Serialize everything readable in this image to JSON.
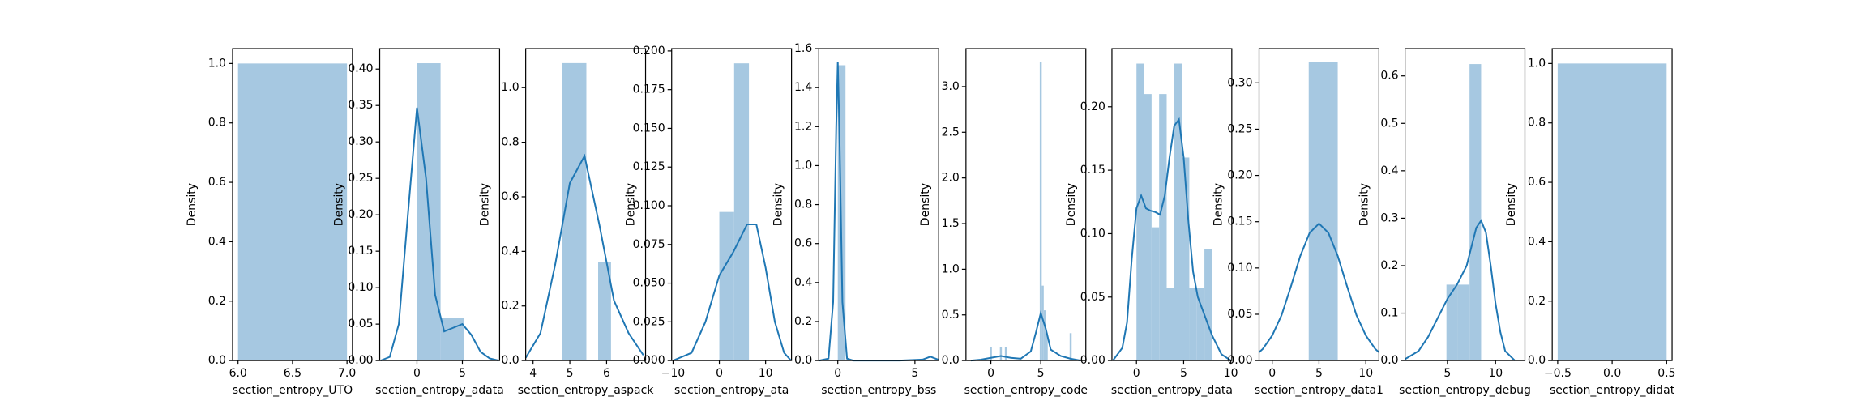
{
  "chart_data": [
    {
      "type": "histogram",
      "xlabel": "section_entropy_UTO",
      "ylabel": "Density",
      "bins": [
        6.0,
        7.0
      ],
      "values": [
        1.0
      ],
      "color": "#a6c8e1",
      "xlim": [
        5.95,
        7.05
      ],
      "xticks": [
        {
          "value": 6.0,
          "label": "6.0"
        },
        6.5,
        {
          "value": 7.0,
          "label": "7.0"
        }
      ],
      "ylim": [
        0,
        1.05
      ],
      "yticks": [
        {
          "value": 0,
          "label": "0.0"
        },
        0.2,
        0.4,
        0.6,
        0.8,
        {
          "value": 1.0,
          "label": "1.0"
        }
      ]
    },
    {
      "type": "histogram",
      "xlabel": "section_entropy_adata",
      "ylabel": "Density",
      "bins": [
        0,
        2.6,
        5.2
      ],
      "values": [
        0.408,
        0.058
      ],
      "color": "#a6c8e1",
      "kde": {
        "x": [
          -4,
          -3,
          -2,
          -1,
          0,
          1,
          2,
          3,
          4,
          5,
          6,
          7,
          8,
          9
        ],
        "y": [
          0,
          0.005,
          0.05,
          0.2,
          0.347,
          0.25,
          0.09,
          0.04,
          0.045,
          0.05,
          0.035,
          0.012,
          0.003,
          0
        ],
        "color": "#1f77b4"
      },
      "xlim": [
        -4.1,
        9.1
      ],
      "xticks": [
        0,
        5
      ],
      "ylim": [
        0,
        0.428
      ],
      "yticks": [
        {
          "value": 0,
          "label": "0.00"
        },
        0.05,
        {
          "value": 0.1,
          "label": "0.10"
        },
        0.15,
        {
          "value": 0.2,
          "label": "0.20"
        },
        0.25,
        {
          "value": 0.3,
          "label": "0.30"
        },
        0.35,
        {
          "value": 0.4,
          "label": "0.40"
        }
      ]
    },
    {
      "type": "histogram",
      "xlabel": "section_entropy_aspack",
      "ylabel": "Density",
      "bins": [
        4.8,
        5.45,
        5.77,
        6.12
      ],
      "values": [
        1.09,
        0,
        0.36
      ],
      "color": "#a6c8e1",
      "kde": {
        "x": [
          3.8,
          4.2,
          4.6,
          5.0,
          5.4,
          5.8,
          6.2,
          6.6,
          7.0
        ],
        "y": [
          0.01,
          0.1,
          0.35,
          0.65,
          0.75,
          0.5,
          0.22,
          0.1,
          0.02
        ],
        "color": "#1f77b4"
      },
      "xlim": [
        3.8,
        7.06
      ],
      "xticks": [
        4,
        5,
        6
      ],
      "ylim": [
        0,
        1.143
      ],
      "yticks": [
        {
          "value": 0,
          "label": "0.0"
        },
        0.2,
        0.4,
        0.6,
        0.8,
        {
          "value": 1.0,
          "label": "1.0"
        }
      ]
    },
    {
      "type": "histogram",
      "xlabel": "section_entropy_ata",
      "ylabel": "Density",
      "bins": [
        0,
        3.2,
        6.4
      ],
      "values": [
        0.096,
        0.192
      ],
      "color": "#a6c8e1",
      "kde": {
        "x": [
          -10,
          -6,
          -3,
          0,
          3,
          6,
          8,
          10,
          12,
          14,
          15.5
        ],
        "y": [
          0,
          0.005,
          0.025,
          0.055,
          0.07,
          0.088,
          0.088,
          0.06,
          0.025,
          0.005,
          0
        ],
        "color": "#1f77b4"
      },
      "xlim": [
        -10.3,
        15.6
      ],
      "xticks": [
        {
          "value": -10,
          "label": "−10"
        },
        0,
        10
      ],
      "ylim": [
        0,
        0.2015
      ],
      "yticks": [
        {
          "value": 0,
          "label": "0.000"
        },
        {
          "value": 0.025,
          "label": "0.025"
        },
        {
          "value": 0.05,
          "label": "0.050"
        },
        {
          "value": 0.075,
          "label": "0.075"
        },
        {
          "value": 0.1,
          "label": "0.100"
        },
        {
          "value": 0.125,
          "label": "0.125"
        },
        {
          "value": 0.15,
          "label": "0.150"
        },
        {
          "value": 0.175,
          "label": "0.175"
        },
        {
          "value": 0.2,
          "label": "0.200"
        }
      ]
    },
    {
      "type": "histogram",
      "xlabel": "section_entropy_bss",
      "ylabel": "Density",
      "bins": [
        0,
        0.5
      ],
      "values": [
        1.515
      ],
      "color": "#a6c8e1",
      "kde": {
        "x": [
          -1.2,
          -0.6,
          -0.3,
          -0.1,
          0,
          0.1,
          0.3,
          0.6,
          1,
          2,
          4,
          5.5,
          6,
          6.5
        ],
        "y": [
          0,
          0.01,
          0.3,
          1.2,
          1.53,
          1.2,
          0.3,
          0.01,
          0,
          0,
          0,
          0.005,
          0.02,
          0.005
        ],
        "color": "#1f77b4"
      },
      "xlim": [
        -1.23,
        6.54
      ],
      "xticks": [
        0,
        5
      ],
      "ylim": [
        0,
        1.6
      ],
      "yticks": [
        {
          "value": 0,
          "label": "0.0"
        },
        0.2,
        0.4,
        0.6,
        0.8,
        {
          "value": 1.0,
          "label": "1.0"
        },
        1.2,
        1.4,
        1.6
      ]
    },
    {
      "type": "histogram",
      "xlabel": "section_entropy_code",
      "ylabel": "Density",
      "bins": [
        -0.1,
        0.1,
        0.9,
        1.1,
        1.4,
        1.6,
        4.9,
        5.1,
        5.3,
        5.5,
        5.7,
        7.9,
        8.1
      ],
      "values": [
        0.15,
        0,
        0.15,
        0,
        0.15,
        0,
        3.27,
        0.82,
        0.55,
        0.3,
        0,
        0.3
      ],
      "color": "#a6c8e1",
      "kde": {
        "x": [
          -2,
          -1,
          0,
          1,
          2,
          3,
          4,
          4.5,
          5,
          5.5,
          6,
          7,
          8,
          9
        ],
        "y": [
          0,
          0.01,
          0.03,
          0.05,
          0.03,
          0.02,
          0.1,
          0.3,
          0.52,
          0.35,
          0.12,
          0.05,
          0.02,
          0
        ],
        "color": "#1f77b4"
      },
      "xlim": [
        -2.5,
        9.52
      ],
      "xticks": [
        0,
        5
      ],
      "ylim": [
        0,
        3.416
      ],
      "yticks": [
        {
          "value": 0,
          "label": "0.0"
        },
        0.5,
        {
          "value": 1.0,
          "label": "1.0"
        },
        1.5,
        {
          "value": 2.0,
          "label": "2.0"
        },
        2.5,
        {
          "value": 3.0,
          "label": "3.0"
        }
      ]
    },
    {
      "type": "histogram",
      "xlabel": "section_entropy_data",
      "ylabel": "Density",
      "bins": [
        0,
        0.8,
        1.6,
        2.4,
        3.2,
        4.0,
        4.8,
        5.6,
        6.4,
        7.2,
        8.0
      ],
      "values": [
        0.234,
        0.21,
        0.105,
        0.21,
        0.057,
        0.234,
        0.16,
        0.057,
        0.057,
        0.088
      ],
      "color": "#a6c8e1",
      "kde": {
        "x": [
          -2.5,
          -1.5,
          -1,
          -0.5,
          0,
          0.5,
          1,
          1.5,
          2,
          2.5,
          3,
          3.5,
          4,
          4.5,
          5,
          5.5,
          6,
          6.5,
          7,
          7.5,
          8,
          9,
          10
        ],
        "y": [
          0,
          0.01,
          0.03,
          0.08,
          0.12,
          0.13,
          0.12,
          0.118,
          0.117,
          0.115,
          0.13,
          0.16,
          0.185,
          0.19,
          0.16,
          0.11,
          0.07,
          0.05,
          0.04,
          0.03,
          0.02,
          0.005,
          0
        ],
        "color": "#1f77b4"
      },
      "xlim": [
        -2.6,
        10.1
      ],
      "xticks": [
        0,
        5,
        10
      ],
      "ylim": [
        0,
        0.2458
      ],
      "yticks": [
        {
          "value": 0,
          "label": "0.00"
        },
        0.05,
        {
          "value": 0.1,
          "label": "0.10"
        },
        0.15,
        {
          "value": 0.2,
          "label": "0.20"
        }
      ]
    },
    {
      "type": "histogram",
      "xlabel": "section_entropy_data1",
      "ylabel": "Density",
      "bins": [
        3.9,
        7.0
      ],
      "values": [
        0.323
      ],
      "color": "#a6c8e1",
      "kde": {
        "x": [
          -1.4,
          -1,
          0,
          1,
          2,
          3,
          4,
          5,
          6,
          7,
          8,
          9,
          10,
          11,
          11.4
        ],
        "y": [
          0.009,
          0.0126,
          0.027,
          0.049,
          0.08,
          0.113,
          0.138,
          0.148,
          0.138,
          0.113,
          0.08,
          0.049,
          0.027,
          0.0126,
          0.009
        ],
        "color": "#1f77b4"
      },
      "xlim": [
        -1.4,
        11.4
      ],
      "xticks": [
        0,
        5,
        10
      ],
      "ylim": [
        0,
        0.337
      ],
      "yticks": [
        {
          "value": 0,
          "label": "0.00"
        },
        0.05,
        {
          "value": 0.1,
          "label": "0.10"
        },
        0.15,
        {
          "value": 0.2,
          "label": "0.20"
        },
        0.25,
        {
          "value": 0.3,
          "label": "0.30"
        }
      ]
    },
    {
      "type": "histogram",
      "xlabel": "section_entropy_debug",
      "ylabel": "Density",
      "bins": [
        4.9,
        6.1,
        7.3,
        8.5
      ],
      "values": [
        0.16,
        0.16,
        0.625
      ],
      "color": "#a6c8e1",
      "kde": {
        "x": [
          0.6,
          2,
          3,
          4,
          5,
          6,
          7,
          7.5,
          8,
          8.5,
          9,
          9.5,
          10,
          10.5,
          11,
          12
        ],
        "y": [
          0.003,
          0.02,
          0.05,
          0.09,
          0.13,
          0.16,
          0.2,
          0.24,
          0.28,
          0.295,
          0.27,
          0.2,
          0.12,
          0.06,
          0.02,
          0
        ],
        "color": "#1f77b4"
      },
      "xlim": [
        0.6,
        13.05
      ],
      "xticks": [
        5,
        10
      ],
      "ylim": [
        0,
        0.6575
      ],
      "yticks": [
        {
          "value": 0,
          "label": "0.0"
        },
        0.1,
        0.2,
        0.3,
        0.4,
        0.5,
        0.6
      ]
    },
    {
      "type": "histogram",
      "xlabel": "section_entropy_didat",
      "ylabel": "Density",
      "bins": [
        -0.5,
        0.5
      ],
      "values": [
        1.0
      ],
      "color": "#a6c8e1",
      "xlim": [
        -0.55,
        0.55
      ],
      "xticks": [
        {
          "value": -0.5,
          "label": "−0.5"
        },
        {
          "value": 0,
          "label": "0.0"
        },
        0.5
      ],
      "ylim": [
        0,
        1.05
      ],
      "yticks": [
        {
          "value": 0,
          "label": "0.0"
        },
        0.2,
        0.4,
        0.6,
        0.8,
        {
          "value": 1.0,
          "label": "1.0"
        }
      ]
    }
  ]
}
